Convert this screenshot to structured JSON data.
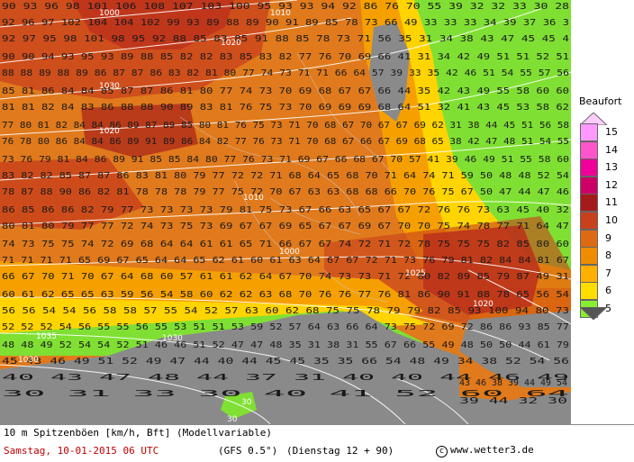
{
  "map": {
    "values": [
      "90 93 96 98 101 106 108 107 103 100 95 93 93 94 92 86 76 70 55 39 32 32 33 30 28",
      "92 96 97 102 104 104 102 99 93 89 88 89 90 91 89 85 78 73 66 49 33 33 33 34 39 37 36 3",
      "92 97 95 98 101 98 95 92 88 85 83 85 91 88 85 78 73 71 56 35 31 34 38 43 47 45 45 4",
      "90 90 94 93 95 93 89 88 85 82 82 83 85 83 82 77 76 70 69 66 41 31 34 42 49 51 51 52 51",
      "88 88 89 88 89 86 87 87 86 83 82 81 80 77 74 73 71 71 66 64 57 39 33 35 42 46 51 54 55 57 56",
      "85 81 86 84 84 85 87 87 86 81 80 77 74 73 70 69 68 67 67 66 44 35 42 43 49 55 58 60 60",
      "81 81 82 84 83 86 88 88 90 89 83 81 76 75 73 70 69 69 69 68 64 51 32 41 43 45 53 58 62",
      "77 80 81 82 84 84 86 89 87 89 85 80 81 76 75 73 71 70 68 67 70 67 67 69 62 31 38 44 45 51 56 58",
      "76 78 80 86 84 84 86 89 91 89 86 84 82 77 76 73 71 70 68 67 66 67 69 68 65 38 42 47 48 51 54 55",
      "73 76 79 81 84 86 89 91 85 85 84 80 77 76 73 71 69 67 66 68 67 70 57 41 39 46 49 51 55 58 60",
      "83 82 82 85 87 87 86 83 81 80 79 77 72 72 71 68 64 65 68 70 71 64 74 71 59 50 48 48 52 54",
      "78 87 88 90 86 82 81 78 78 78 79 77 75 72 70 67 63 63 68 68 66 70 76 75 67 50 47 44 47 46",
      "86 85 86 86 82 79 77 73 73 73 73 79 81 75 73 67 66 63 65 67 67 72 76 76 73 63 45 40 32",
      "80 81 80 79 77 77 72 74 73 75 73 69 67 67 69 65 67 67 69 67 70 70 75 74 78 77 71 64 47",
      "74 73 75 75 74 72 69 68 64 64 61 61 65 71 66 67 67 74 72 71 72 78 75 75 75 82 85 80 60",
      "71 71 71 71 65 69 67 65 64 64 65 62 61 60 61 63 64 67 67 72 71 73 76 79 81 82 84 84 81 67",
      "66 67 70 71 70 67 64 68 60 57 61 61 62 64 67 70 74 73 73 71 72 80 82 89 85 79 87 49 31",
      "60 61 62 65 65 63 59 56 54 58 60 62 62 63 68 70 76 76 77 76 81 86 90 91 88 78 65 56 54",
      "56 56 54 54 56 58 58 57 55 54 52 57 63 60 62 68 75 75 78 79 79 82 85 93 100 94 80 73",
      "52 52 52 54 56 55 55 56 55 53 51 51 53 59 52 57 64 63 66 64 73 75 72 69 72 86 86 93 85 77",
      "48 48 49 52 54 54 52 51 46 46 51 52 47 47 48 35 31 38 31 55 67 66 55 49 48 50 50 44 61 79",
      "45 43 46 49 51 52 49 47 44 40 44 45 45 35 35 66 54 48 49 34 38 52 54 56",
      "40 43 47 48 44 37 31 40 40 44 46 49",
      "30 31 33 30 40 41 52 60 64",
      "43 46 38 39 44 49 54",
      "39 44 32 30"
    ],
    "isobars": [
      "1000",
      "1010",
      "1020",
      "1030",
      "1020",
      "1010",
      "1000",
      "1030",
      "1030",
      "1025",
      "1020",
      "1035",
      "30",
      "30"
    ]
  },
  "legend": {
    "title": "Beaufort",
    "levels": [
      {
        "label": "15",
        "color": "#ff99ff"
      },
      {
        "label": "14",
        "color": "#ff55cc"
      },
      {
        "label": "13",
        "color": "#ee0099"
      },
      {
        "label": "12",
        "color": "#cc0066"
      },
      {
        "label": "11",
        "color": "#a51a1a"
      },
      {
        "label": "10",
        "color": "#c8401c"
      },
      {
        "label": "9",
        "color": "#dd6a12"
      },
      {
        "label": "8",
        "color": "#f08c00"
      },
      {
        "label": "7",
        "color": "#ffb000"
      },
      {
        "label": "6",
        "color": "#ffdd00"
      },
      {
        "label": "5",
        "color": "#88ee33"
      }
    ]
  },
  "footer": {
    "title": "10 m Spitzenböen [km/h, Bft] (Modellvariable)",
    "date": "Samstag, 10-01-2015  06 UTC",
    "model": "(GFS 0.5°)",
    "run": "(Dienstag 12 + 90)",
    "copyright": "www.wetter3.de"
  },
  "colors": {
    "land_gray": "#8a8a8a",
    "green": "#55e022",
    "yellow": "#ffd400",
    "orange": "#f5a000",
    "dark_orange": "#e07a1c",
    "red_orange": "#c8401c",
    "dark_red": "#a51a1a"
  }
}
